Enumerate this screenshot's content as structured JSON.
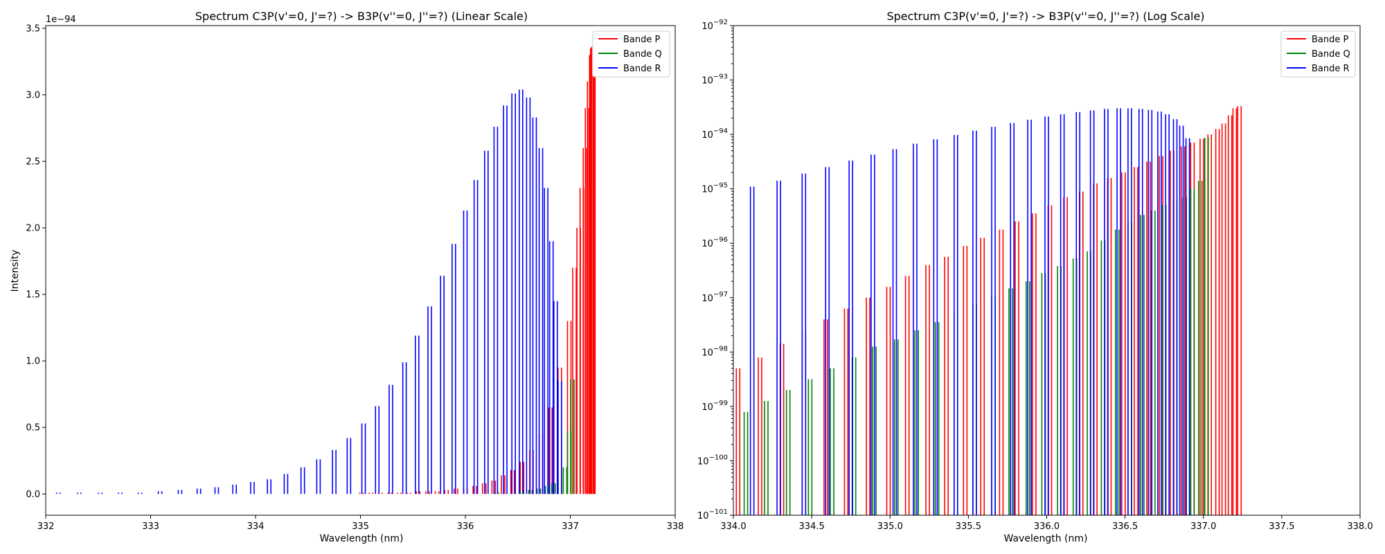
{
  "chart_data": [
    {
      "type": "line",
      "title": "Spectrum C3P(v'=0, J'=?) -> B3P(v''=0, J''=?) (Linear Scale)",
      "xlabel": "Wavelength (nm)",
      "ylabel": "Intensity",
      "xlim": [
        332,
        338
      ],
      "ylim": [
        -0.16,
        3.52
      ],
      "y_multiplier_label": "1e−94",
      "yscale": "linear",
      "x_ticks": [
        "332",
        "333",
        "334",
        "335",
        "336",
        "337",
        "338"
      ],
      "y_ticks": [
        "0.0",
        "0.5",
        "1.0",
        "1.5",
        "2.0",
        "2.5",
        "3.0",
        "3.5"
      ],
      "legend": {
        "placement": "top-right",
        "entries": [
          "Bande P",
          "Bande Q",
          "Bande R"
        ]
      },
      "grid": false,
      "series": [
        {
          "name": "Bande P",
          "color": "#ff0000",
          "x": [
            335.01,
            335.1,
            335.19,
            335.28,
            335.37,
            335.46,
            335.55,
            335.64,
            335.73,
            335.82,
            335.91,
            336.0,
            336.09,
            336.18,
            336.27,
            336.36,
            336.45,
            336.54,
            336.63,
            336.72,
            336.81,
            336.9,
            336.99,
            337.04,
            337.08,
            337.11,
            337.14,
            337.16,
            337.18,
            337.2,
            337.21,
            337.22
          ],
          "y": [
            0.01,
            0.01,
            0.01,
            0.01,
            0.01,
            0.01,
            0.02,
            0.02,
            0.02,
            0.03,
            0.04,
            0.05,
            0.06,
            0.08,
            0.1,
            0.14,
            0.18,
            0.24,
            0.33,
            0.45,
            0.65,
            0.95,
            1.3,
            1.7,
            2.0,
            2.3,
            2.6,
            2.9,
            3.1,
            3.3,
            3.35,
            3.36
          ]
        },
        {
          "name": "Bande Q",
          "color": "#008000",
          "x": [
            336.3,
            336.38,
            336.46,
            336.54,
            336.62,
            336.7,
            336.78,
            336.84,
            336.9,
            336.95,
            336.99,
            337.02
          ],
          "y": [
            0.01,
            0.01,
            0.02,
            0.02,
            0.03,
            0.04,
            0.06,
            0.08,
            0.12,
            0.2,
            0.47,
            0.86
          ]
        },
        {
          "name": "Bande R",
          "color": "#0000ff",
          "x": [
            332.12,
            332.32,
            332.52,
            332.71,
            332.9,
            333.09,
            333.28,
            333.46,
            333.63,
            333.8,
            333.97,
            334.13,
            334.29,
            334.45,
            334.6,
            334.75,
            334.89,
            335.03,
            335.16,
            335.29,
            335.42,
            335.54,
            335.66,
            335.78,
            335.89,
            336.0,
            336.1,
            336.2,
            336.29,
            336.38,
            336.46,
            336.53,
            336.6,
            336.66,
            336.72,
            336.77,
            336.82,
            336.86,
            336.9
          ],
          "y": [
            0.01,
            0.01,
            0.01,
            0.01,
            0.01,
            0.02,
            0.03,
            0.04,
            0.05,
            0.07,
            0.09,
            0.11,
            0.15,
            0.2,
            0.26,
            0.33,
            0.42,
            0.53,
            0.66,
            0.82,
            0.99,
            1.19,
            1.41,
            1.64,
            1.88,
            2.13,
            2.36,
            2.58,
            2.76,
            2.92,
            3.01,
            3.04,
            2.98,
            2.83,
            2.6,
            2.3,
            1.9,
            1.45,
            0.85
          ]
        }
      ]
    },
    {
      "type": "line",
      "title": "Spectrum C3P(v'=0, J'=?) -> B3P(v''=0, J''=?) (Log Scale)",
      "xlabel": "Wavelength (nm)",
      "ylabel": "",
      "xlim": [
        334.0,
        338.0
      ],
      "ylim": [
        1e-101,
        1e-92
      ],
      "yscale": "log",
      "x_ticks": [
        "334.0",
        "334.5",
        "335.0",
        "335.5",
        "336.0",
        "336.5",
        "337.0",
        "337.5",
        "338.0"
      ],
      "y_tick_exponents": [
        "−101",
        "−100",
        "−99",
        "−98",
        "−97",
        "−96",
        "−95",
        "−94",
        "−93",
        "−92"
      ],
      "y_tick_base": "10",
      "legend": {
        "placement": "top-right",
        "entries": [
          "Bande P",
          "Bande Q",
          "Bande R"
        ]
      },
      "grid": false,
      "series": [
        {
          "name": "Bande P",
          "color": "#ff0000",
          "x": [
            334.03,
            334.17,
            334.31,
            334.45,
            334.59,
            334.72,
            334.86,
            334.99,
            335.11,
            335.24,
            335.36,
            335.48,
            335.59,
            335.71,
            335.81,
            335.92,
            336.02,
            336.12,
            336.22,
            336.31,
            336.4,
            336.49,
            336.57,
            336.65,
            336.73,
            336.8,
            336.87,
            336.93,
            336.99,
            337.04,
            337.09,
            337.13,
            337.17,
            337.2,
            337.23
          ],
          "y_log10": [
            -98.3,
            -98.1,
            -97.85,
            -97.6,
            -97.4,
            -97.2,
            -97.0,
            -96.8,
            -96.6,
            -96.4,
            -96.25,
            -96.05,
            -95.9,
            -95.75,
            -95.6,
            -95.45,
            -95.3,
            -95.15,
            -95.05,
            -94.9,
            -94.8,
            -94.7,
            -94.6,
            -94.5,
            -94.4,
            -94.3,
            -94.22,
            -94.15,
            -94.08,
            -94.0,
            -93.9,
            -93.8,
            -93.65,
            -93.52,
            -93.48
          ]
        },
        {
          "name": "Bande Q",
          "color": "#008000",
          "x": [
            334.08,
            334.21,
            334.35,
            334.49,
            334.63,
            334.77,
            334.9,
            335.04,
            335.17,
            335.3,
            335.42,
            335.54,
            335.66,
            335.77,
            335.88,
            335.98,
            336.08,
            336.18,
            336.27,
            336.36,
            336.45,
            336.53,
            336.61,
            336.68,
            336.75,
            336.82,
            336.88,
            336.93,
            336.98,
            337.02
          ],
          "y_log10": [
            -99.1,
            -98.9,
            -98.7,
            -98.5,
            -98.3,
            -98.1,
            -97.9,
            -97.77,
            -97.6,
            -97.45,
            -97.28,
            -97.12,
            -96.98,
            -96.83,
            -96.7,
            -96.55,
            -96.42,
            -96.28,
            -96.15,
            -95.95,
            -95.75,
            -95.6,
            -95.48,
            -95.4,
            -95.3,
            -95.22,
            -95.15,
            -95.0,
            -94.85,
            -94.06
          ]
        },
        {
          "name": "Bande R",
          "color": "#0000ff",
          "x": [
            334.12,
            334.29,
            334.45,
            334.6,
            334.75,
            334.89,
            335.03,
            335.16,
            335.29,
            335.42,
            335.54,
            335.66,
            335.78,
            335.89,
            336.0,
            336.1,
            336.2,
            336.29,
            336.38,
            336.46,
            336.53,
            336.6,
            336.66,
            336.72,
            336.77,
            336.82,
            336.86,
            336.9
          ],
          "y_log10": [
            -94.96,
            -94.85,
            -94.72,
            -94.6,
            -94.48,
            -94.37,
            -94.27,
            -94.17,
            -94.09,
            -94.01,
            -93.93,
            -93.86,
            -93.79,
            -93.73,
            -93.67,
            -93.63,
            -93.59,
            -93.56,
            -93.53,
            -93.52,
            -93.52,
            -93.53,
            -93.55,
            -93.58,
            -93.63,
            -93.72,
            -93.84,
            -94.07
          ]
        }
      ]
    }
  ]
}
